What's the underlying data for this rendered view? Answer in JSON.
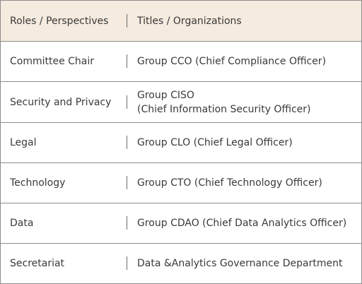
{
  "header": {
    "role": "Roles / Perspectives",
    "title": "Titles / Organizations"
  },
  "rows": [
    {
      "role": "Committee Chair",
      "title_line1": "Group CCO (Chief Compliance Officer)"
    },
    {
      "role": "Security and Privacy",
      "title_line1": "Group CISO",
      "title_line2": "(Chief Information Security Officer)"
    },
    {
      "role": "Legal",
      "title_line1": "Group CLO (Chief Legal Officer)"
    },
    {
      "role": "Technology",
      "title_line1": "Group CTO (Chief Technology Officer)"
    },
    {
      "role": "Data",
      "title_line1": "Group CDAO (Chief Data Analytics Officer)"
    },
    {
      "role": "Secretariat",
      "title_line1": "Data &Analytics Governance Department"
    }
  ],
  "colors": {
    "header_background": "#f5ebdf",
    "border": "#8c8c8c",
    "text": "#3a3a3a"
  }
}
